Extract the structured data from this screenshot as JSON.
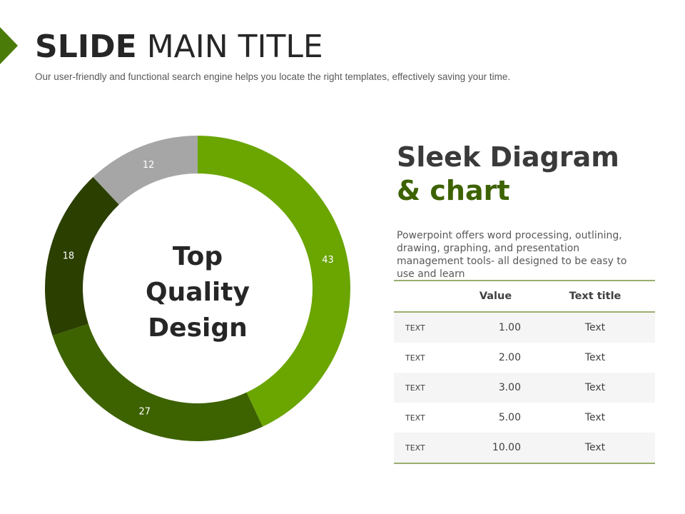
{
  "header": {
    "title_bold": "SLIDE",
    "title_light": "MAIN TITLE",
    "subtitle": "Our user-friendly and functional search engine helps you locate the right templates, effectively saving your time."
  },
  "chart_data": {
    "type": "pie",
    "donut": true,
    "values": [
      43,
      27,
      18,
      12
    ],
    "labels": [
      "43",
      "27",
      "18",
      "12"
    ],
    "colors": [
      "#6aa500",
      "#3d6200",
      "#2b3f00",
      "#a6a6a6"
    ],
    "center_text": [
      "Top",
      "Quality",
      "Design"
    ]
  },
  "side": {
    "heading1": "Sleek Diagram",
    "heading2": "& chart",
    "description": "Powerpoint offers word processing, outlining, drawing, graphing, and presentation management tools- all designed to be easy to use and learn"
  },
  "table": {
    "headers": [
      "",
      "Value",
      "Text title"
    ],
    "rows": [
      [
        "TEXT",
        "1.00",
        "Text"
      ],
      [
        "TEXT",
        "2.00",
        "Text"
      ],
      [
        "TEXT",
        "3.00",
        "Text"
      ],
      [
        "TEXT",
        "5.00",
        "Text"
      ],
      [
        "TEXT",
        "10.00",
        "Text"
      ]
    ]
  }
}
